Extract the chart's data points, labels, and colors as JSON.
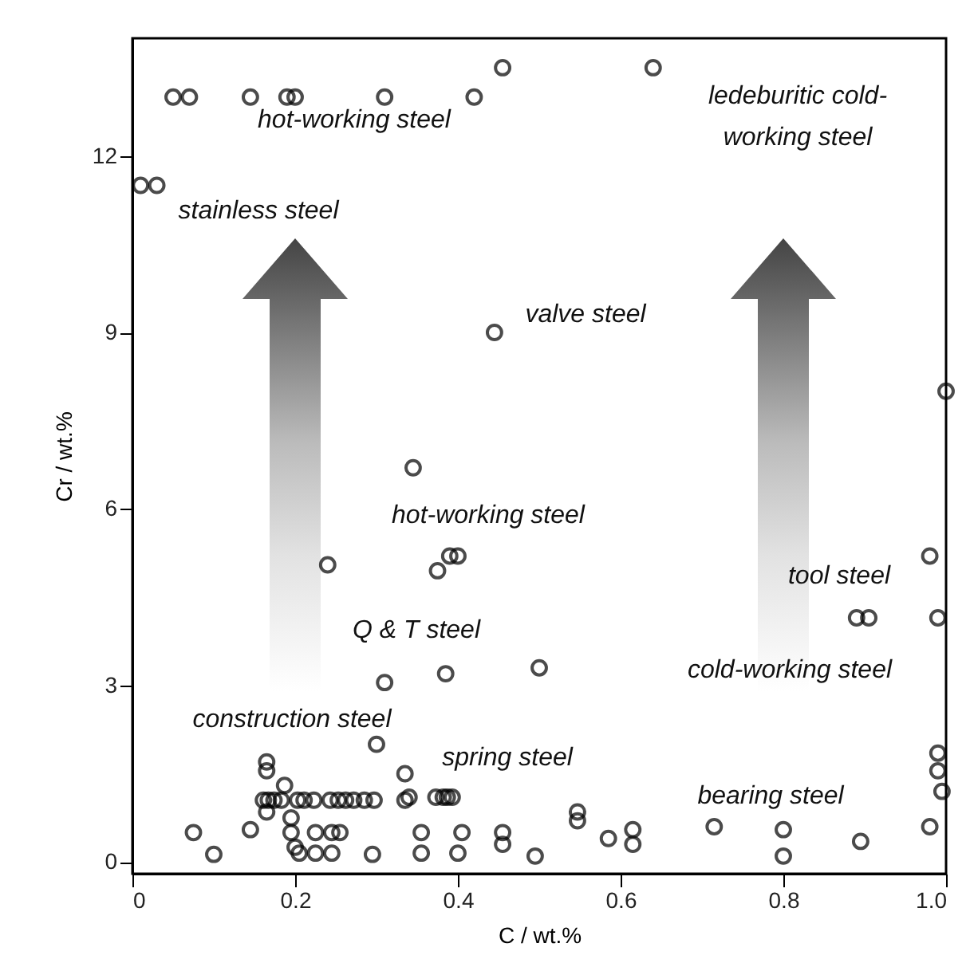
{
  "chart_data": {
    "type": "scatter",
    "xlabel": "C / wt.%",
    "ylabel": "Cr / wt.%",
    "xlim": [
      0,
      1
    ],
    "ylim": [
      -0.2,
      14
    ],
    "xticks": [
      {
        "value": 0,
        "label": "0"
      },
      0.2,
      0.4,
      0.6,
      0.8,
      {
        "value": 1,
        "label": "1.0"
      }
    ],
    "yticks": [
      0,
      3,
      6,
      9,
      12
    ],
    "grid": false,
    "marker": "circle",
    "series": [
      {
        "color": "#000000",
        "x": [
          0.05,
          0.07,
          0.145,
          0.19,
          0.2,
          0.31,
          0.42,
          0.455,
          0.64,
          0.01,
          0.03,
          0.445,
          0.345,
          0.24,
          0.375,
          0.39,
          0.4,
          0.385,
          0.31,
          0.5,
          0.3,
          0.165,
          0.165,
          0.335,
          0.161,
          0.167,
          0.174,
          0.183,
          0.187,
          0.203,
          0.211,
          0.223,
          0.243,
          0.253,
          0.262,
          0.272,
          0.285,
          0.297,
          0.335,
          0.34,
          0.373,
          0.382,
          0.387,
          0.393,
          0.075,
          0.1,
          0.145,
          0.165,
          0.195,
          0.195,
          0.2,
          0.205,
          0.225,
          0.225,
          0.245,
          0.245,
          0.255,
          0.295,
          0.355,
          0.355,
          0.405,
          0.4,
          0.455,
          0.455,
          0.495,
          0.547,
          0.547,
          0.585,
          0.615,
          0.615,
          0.715,
          0.8,
          0.8,
          0.895,
          0.98,
          0.99,
          0.99,
          0.995,
          0.98,
          0.89,
          0.905,
          0.99,
          1.0
        ],
        "values": [
          13,
          13,
          13,
          13,
          13,
          13,
          13,
          13.5,
          13.5,
          11.5,
          11.5,
          9,
          6.7,
          5.05,
          4.95,
          5.2,
          5.2,
          3.2,
          3.05,
          3.3,
          2,
          1.7,
          1.55,
          1.5,
          1.05,
          1.05,
          1.05,
          1.05,
          1.3,
          1.05,
          1.05,
          1.05,
          1.05,
          1.05,
          1.05,
          1.05,
          1.05,
          1.05,
          1.05,
          1.1,
          1.1,
          1.1,
          1.1,
          1.1,
          0.5,
          0.13,
          0.55,
          0.85,
          0.75,
          0.5,
          0.25,
          0.15,
          0.5,
          0.15,
          0.5,
          0.15,
          0.5,
          0.13,
          0.5,
          0.15,
          0.5,
          0.15,
          0.5,
          0.3,
          0.1,
          0.85,
          0.7,
          0.4,
          0.55,
          0.3,
          0.6,
          0.55,
          0.1,
          0.35,
          0.6,
          1.85,
          1.55,
          1.2,
          5.2,
          4.15,
          4.15,
          4.15,
          8
        ]
      }
    ],
    "annotations": [
      "hot-working steel",
      "stainless steel",
      "ledeburitic cold-\nworking steel",
      "valve steel",
      "hot-working steel",
      "Q & T steel",
      "construction steel",
      "spring steel",
      "bearing steel",
      "tool steel",
      "cold-working steel"
    ]
  }
}
